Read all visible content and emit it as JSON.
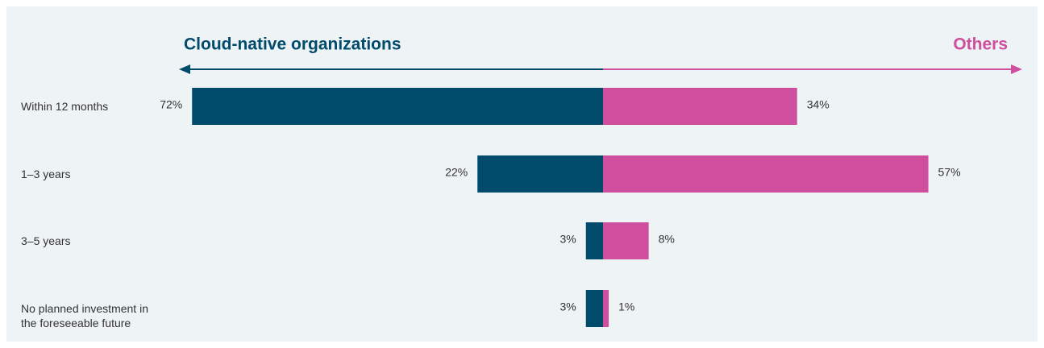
{
  "chart_data": {
    "type": "diverging_bar",
    "categories": [
      "Within 12 months",
      "1–3 years",
      "3–5 years",
      "No planned investment in the foreseeable future"
    ],
    "series": [
      {
        "name": "Cloud-native organizations",
        "color": "#004a6b",
        "side": "left",
        "values": [
          72,
          22,
          3,
          3
        ],
        "value_labels": [
          "72%",
          "22%",
          "3%",
          "3%"
        ]
      },
      {
        "name": "Others",
        "color": "#cf4f9e",
        "side": "right",
        "values": [
          34,
          57,
          8,
          1
        ],
        "value_labels": [
          "34%",
          "57%",
          "8%",
          "1%"
        ]
      }
    ]
  }
}
